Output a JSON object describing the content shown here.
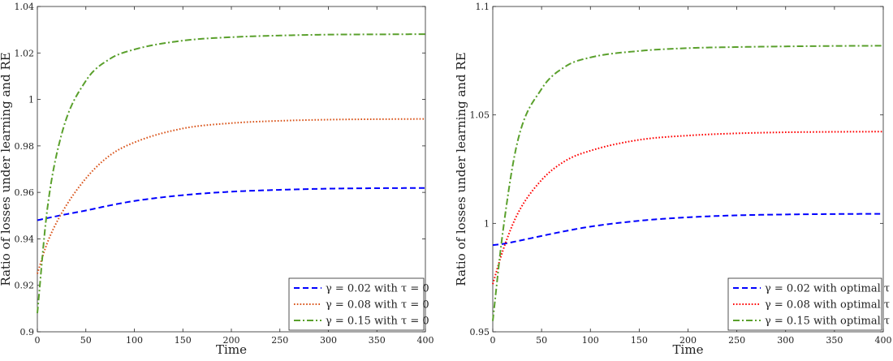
{
  "chart_data": [
    {
      "type": "line",
      "title": "",
      "xlabel": "Time",
      "ylabel": "Ratio of losses under learning and RE",
      "xlim": [
        0,
        400
      ],
      "ylim": [
        0.9,
        1.04
      ],
      "xticks": [
        0,
        50,
        100,
        150,
        200,
        250,
        300,
        350,
        400
      ],
      "yticks": [
        0.9,
        0.92,
        0.94,
        0.96,
        0.98,
        1,
        1.02,
        1.04
      ],
      "x_tick_labels": [
        "0",
        "50",
        "100",
        "150",
        "200",
        "250",
        "300",
        "350",
        "400"
      ],
      "y_tick_labels": [
        "0.9",
        "0.92",
        "0.94",
        "0.96",
        "0.98",
        "1",
        "1.02",
        "1.04"
      ],
      "grid": false,
      "legend_position": "bottom-right",
      "series": [
        {
          "name": "γ = 0.02 with τ = 0",
          "gamma": "0.02",
          "tau": "0",
          "color": "#0000ff",
          "dash": "dashed",
          "x": [
            0,
            10,
            25,
            50,
            75,
            100,
            150,
            200,
            250,
            300,
            350,
            400
          ],
          "y": [
            0.948,
            0.9489,
            0.9502,
            0.9522,
            0.9544,
            0.9563,
            0.9588,
            0.9603,
            0.9611,
            0.9616,
            0.9618,
            0.9619
          ]
        },
        {
          "name": "γ = 0.08 with τ = 0",
          "gamma": "0.08",
          "tau": "0",
          "color": "#d95319",
          "dash": "dotted",
          "x": [
            0,
            10,
            25,
            50,
            75,
            100,
            150,
            200,
            250,
            300,
            350,
            400
          ],
          "y": [
            0.925,
            0.938,
            0.951,
            0.966,
            0.976,
            0.9815,
            0.9875,
            0.9898,
            0.9908,
            0.9913,
            0.9915,
            0.9916
          ]
        },
        {
          "name": "γ = 0.15 with τ = 0",
          "gamma": "0.15",
          "tau": "0",
          "color": "#5aa02c",
          "dash": "dashdot",
          "x": [
            0,
            10,
            25,
            50,
            75,
            100,
            150,
            200,
            250,
            300,
            350,
            400
          ],
          "y": [
            0.908,
            0.952,
            0.985,
            1.008,
            1.0175,
            1.0215,
            1.0253,
            1.0268,
            1.0275,
            1.0279,
            1.028,
            1.0281
          ]
        }
      ]
    },
    {
      "type": "line",
      "title": "",
      "xlabel": "Time",
      "ylabel": "Ratio of losses under learning and RE",
      "xlim": [
        0,
        400
      ],
      "ylim": [
        0.95,
        1.1
      ],
      "xticks": [
        0,
        50,
        100,
        150,
        200,
        250,
        300,
        350,
        400
      ],
      "yticks": [
        0.95,
        1,
        1.05,
        1.1
      ],
      "x_tick_labels": [
        "0",
        "50",
        "100",
        "150",
        "200",
        "250",
        "300",
        "350",
        "400"
      ],
      "y_tick_labels": [
        "0.95",
        "1",
        "1.05",
        "1.1"
      ],
      "grid": false,
      "legend_position": "bottom-right",
      "series": [
        {
          "name": "γ = 0.02 with optimal τ",
          "gamma": "0.02",
          "tau": "optimal",
          "color": "#0000ff",
          "dash": "dashed",
          "x": [
            0,
            10,
            25,
            50,
            75,
            100,
            150,
            200,
            250,
            300,
            350,
            400
          ],
          "y": [
            0.99,
            0.9905,
            0.9918,
            0.9942,
            0.9965,
            0.9985,
            1.0012,
            1.0028,
            1.0037,
            1.0041,
            1.0043,
            1.0044
          ]
        },
        {
          "name": "γ = 0.08 with optimal τ",
          "gamma": "0.08",
          "tau": "optimal",
          "color": "#ff0000",
          "dash": "dotted",
          "x": [
            0,
            10,
            25,
            50,
            75,
            100,
            150,
            200,
            250,
            300,
            350,
            400
          ],
          "y": [
            0.972,
            0.987,
            1.004,
            1.02,
            1.029,
            1.0335,
            1.0385,
            1.0405,
            1.0415,
            1.042,
            1.0422,
            1.0423
          ]
        },
        {
          "name": "γ = 0.15 with optimal τ",
          "gamma": "0.15",
          "tau": "optimal",
          "color": "#5aa02c",
          "dash": "dashdot",
          "x": [
            0,
            10,
            25,
            50,
            75,
            100,
            150,
            200,
            250,
            300,
            350,
            400
          ],
          "y": [
            0.955,
            0.995,
            1.037,
            1.062,
            1.0725,
            1.0765,
            1.0795,
            1.0808,
            1.0813,
            1.0816,
            1.0818,
            1.0819
          ]
        }
      ]
    }
  ]
}
